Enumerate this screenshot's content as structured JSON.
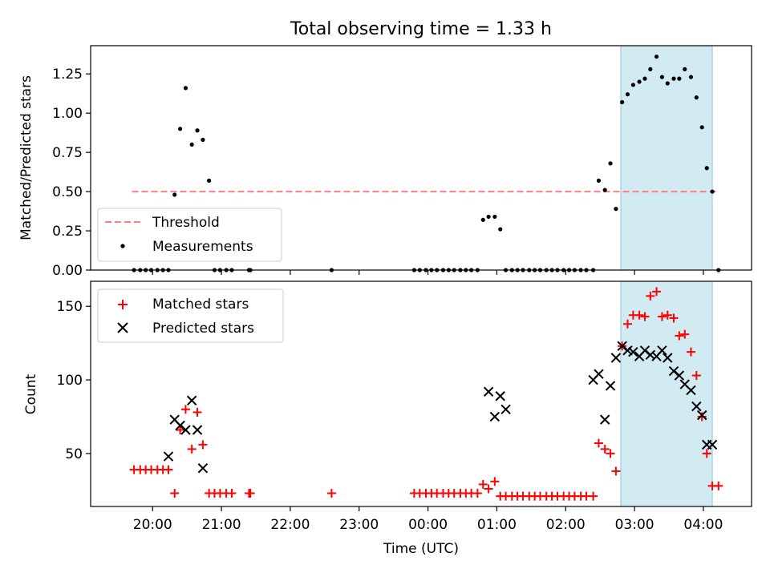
{
  "chart_data": [
    {
      "type": "scatter",
      "title": "Total observing time = 1.33 h",
      "xlabel": "",
      "ylabel": "Matched/Predicted stars",
      "xlim_hours": [
        19.1,
        28.7
      ],
      "ylim": [
        0,
        1.43
      ],
      "yticks": [
        "0.00",
        "0.25",
        "0.50",
        "0.75",
        "1.00",
        "1.25"
      ],
      "ytick_values": [
        0,
        0.25,
        0.5,
        0.75,
        1.0,
        1.25
      ],
      "highlight_span_hours": [
        26.8,
        28.13
      ],
      "highlight_color": "#add8e6",
      "legend": {
        "placement": "lower-left",
        "entries": [
          "Threshold",
          "Measurements"
        ]
      },
      "threshold": {
        "name": "Threshold",
        "value": 0.5,
        "x_hours": [
          19.7,
          28.2
        ],
        "color": "#ff7f7f"
      },
      "series": [
        {
          "name": "Measurements",
          "color": "#000000",
          "x_hours": [
            19.73,
            19.82,
            19.9,
            19.98,
            20.07,
            20.15,
            20.23,
            20.32,
            20.4,
            20.48,
            20.57,
            20.65,
            20.73,
            20.82,
            20.9,
            20.98,
            21.07,
            21.15,
            21.4,
            21.42,
            22.6,
            23.8,
            23.88,
            23.97,
            24.05,
            24.13,
            24.22,
            24.3,
            24.38,
            24.47,
            24.55,
            24.63,
            24.72,
            24.8,
            24.88,
            24.97,
            25.05,
            25.13,
            25.22,
            25.3,
            25.38,
            25.47,
            25.55,
            25.63,
            25.72,
            25.8,
            25.88,
            25.97,
            26.05,
            26.13,
            26.22,
            26.3,
            26.4,
            26.48,
            26.57,
            26.65,
            26.73,
            26.82,
            26.9,
            26.98,
            27.07,
            27.15,
            27.23,
            27.32,
            27.4,
            27.48,
            27.57,
            27.65,
            27.73,
            27.82,
            27.9,
            27.98,
            28.05,
            28.13,
            28.22
          ],
          "y": [
            0,
            0,
            0,
            0,
            0,
            0,
            0,
            0.48,
            0.9,
            1.16,
            0.8,
            0.89,
            0.83,
            0.57,
            0,
            0,
            0,
            0,
            0,
            0,
            0,
            0,
            0,
            0,
            0,
            0,
            0,
            0,
            0,
            0,
            0,
            0,
            0,
            0.32,
            0.34,
            0.34,
            0.26,
            0,
            0,
            0,
            0,
            0,
            0,
            0,
            0,
            0,
            0,
            0,
            0,
            0,
            0,
            0,
            0,
            0.57,
            0.51,
            0.68,
            0.39,
            1.07,
            1.12,
            1.18,
            1.2,
            1.22,
            1.28,
            1.36,
            1.23,
            1.19,
            1.22,
            1.22,
            1.28,
            1.23,
            1.1,
            0.91,
            0.65,
            0.5,
            0
          ]
        }
      ]
    },
    {
      "type": "scatter",
      "title": "",
      "xlabel": "Time (UTC)",
      "ylabel": "Count",
      "xlim_hours": [
        19.1,
        28.7
      ],
      "ylim": [
        14,
        167
      ],
      "yticks": [
        "50",
        "100",
        "150"
      ],
      "ytick_values": [
        50,
        100,
        150
      ],
      "xtick_hours": [
        20,
        21,
        22,
        23,
        24,
        25,
        26,
        27,
        28
      ],
      "xticks": [
        "20:00",
        "21:00",
        "22:00",
        "23:00",
        "00:00",
        "01:00",
        "02:00",
        "03:00",
        "04:00"
      ],
      "highlight_span_hours": [
        26.8,
        28.13
      ],
      "legend": {
        "placement": "upper-left",
        "entries": [
          "Matched stars",
          "Predicted stars"
        ]
      },
      "series": [
        {
          "name": "Matched stars",
          "marker": "plus",
          "color": "#ff0000",
          "x_hours": [
            19.73,
            19.82,
            19.9,
            19.98,
            20.07,
            20.15,
            20.23,
            20.32,
            20.4,
            20.48,
            20.57,
            20.65,
            20.73,
            20.82,
            20.9,
            20.98,
            21.07,
            21.15,
            21.4,
            21.42,
            22.6,
            23.8,
            23.88,
            23.97,
            24.05,
            24.13,
            24.22,
            24.3,
            24.38,
            24.47,
            24.55,
            24.63,
            24.72,
            24.8,
            24.88,
            24.97,
            25.05,
            25.13,
            25.22,
            25.3,
            25.38,
            25.47,
            25.55,
            25.63,
            25.72,
            25.8,
            25.88,
            25.97,
            26.05,
            26.13,
            26.22,
            26.3,
            26.4,
            26.48,
            26.57,
            26.65,
            26.73,
            26.82,
            26.9,
            26.98,
            27.07,
            27.15,
            27.23,
            27.32,
            27.4,
            27.48,
            27.57,
            27.65,
            27.73,
            27.82,
            27.9,
            27.98,
            28.05,
            28.13,
            28.22
          ],
          "y": [
            39,
            39,
            39,
            39,
            39,
            39,
            39,
            23,
            66,
            80,
            53,
            78,
            56,
            23,
            23,
            23,
            23,
            23,
            23,
            23,
            23,
            23,
            23,
            23,
            23,
            23,
            23,
            23,
            23,
            23,
            23,
            23,
            23,
            29,
            26,
            31,
            21,
            21,
            21,
            21,
            21,
            21,
            21,
            21,
            21,
            21,
            21,
            21,
            21,
            21,
            21,
            21,
            21,
            57,
            53,
            50,
            38,
            123,
            138,
            144,
            144,
            143,
            157,
            160,
            143,
            144,
            142,
            130,
            131,
            119,
            103,
            75,
            50,
            28,
            28
          ]
        },
        {
          "name": "Predicted stars",
          "marker": "x",
          "color": "#000000",
          "x_hours": [
            20.23,
            20.32,
            20.4,
            20.48,
            20.57,
            20.65,
            20.73,
            24.88,
            24.97,
            25.05,
            25.13,
            26.4,
            26.48,
            26.57,
            26.65,
            26.73,
            26.82,
            26.9,
            26.98,
            27.07,
            27.15,
            27.23,
            27.32,
            27.4,
            27.48,
            27.57,
            27.65,
            27.73,
            27.82,
            27.9,
            27.98,
            28.05,
            28.13
          ],
          "y": [
            48,
            73,
            69,
            66,
            86,
            66,
            40,
            92,
            75,
            89,
            80,
            100,
            104,
            73,
            96,
            115,
            123,
            120,
            119,
            116,
            120,
            117,
            116,
            120,
            115,
            106,
            103,
            97,
            93,
            82,
            76,
            56,
            56
          ]
        }
      ]
    }
  ]
}
